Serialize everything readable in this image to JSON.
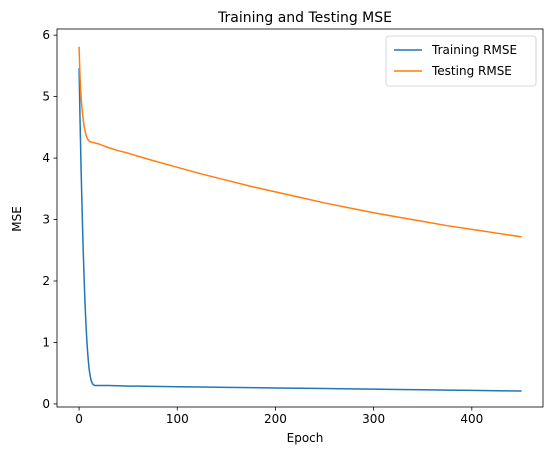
{
  "chart_data": {
    "type": "line",
    "title": "Training and Testing MSE",
    "xlabel": "Epoch",
    "ylabel": "MSE",
    "xlim": [
      -22.5,
      472.5
    ],
    "ylim": [
      -0.05,
      6.1
    ],
    "xticks": [
      0,
      100,
      200,
      300,
      400
    ],
    "yticks": [
      0,
      1,
      2,
      3,
      4,
      5,
      6
    ],
    "grid": false,
    "legend_position": "top-right",
    "series": [
      {
        "name": "Training RMSE",
        "color": "#1f77b4",
        "x": [
          0,
          1,
          2,
          3,
          4,
          5,
          6,
          7,
          8,
          9,
          10,
          11,
          12,
          13,
          14,
          15,
          16,
          17,
          18,
          20,
          25,
          30,
          40,
          50,
          60,
          75,
          100,
          125,
          150,
          175,
          200,
          225,
          250,
          275,
          300,
          325,
          350,
          375,
          400,
          425,
          450
        ],
        "values": [
          5.45,
          4.6,
          3.85,
          3.2,
          2.6,
          2.1,
          1.65,
          1.3,
          1.0,
          0.78,
          0.6,
          0.48,
          0.4,
          0.35,
          0.32,
          0.31,
          0.3,
          0.3,
          0.3,
          0.3,
          0.3,
          0.3,
          0.295,
          0.29,
          0.29,
          0.285,
          0.28,
          0.275,
          0.27,
          0.265,
          0.26,
          0.255,
          0.25,
          0.245,
          0.24,
          0.235,
          0.23,
          0.225,
          0.22,
          0.215,
          0.21
        ]
      },
      {
        "name": "Testing RMSE",
        "color": "#ff7f0e",
        "x": [
          0,
          1,
          2,
          3,
          4,
          5,
          6,
          7,
          8,
          9,
          10,
          11,
          12,
          13,
          14,
          15,
          20,
          25,
          30,
          40,
          50,
          60,
          75,
          100,
          125,
          150,
          175,
          200,
          225,
          250,
          275,
          300,
          325,
          350,
          375,
          400,
          425,
          450
        ],
        "values": [
          5.8,
          5.3,
          5.0,
          4.8,
          4.65,
          4.53,
          4.45,
          4.38,
          4.33,
          4.3,
          4.28,
          4.27,
          4.26,
          4.26,
          4.255,
          4.25,
          4.23,
          4.2,
          4.17,
          4.12,
          4.08,
          4.03,
          3.96,
          3.85,
          3.74,
          3.64,
          3.54,
          3.45,
          3.36,
          3.27,
          3.19,
          3.11,
          3.04,
          2.97,
          2.9,
          2.84,
          2.78,
          2.72
        ]
      }
    ]
  }
}
